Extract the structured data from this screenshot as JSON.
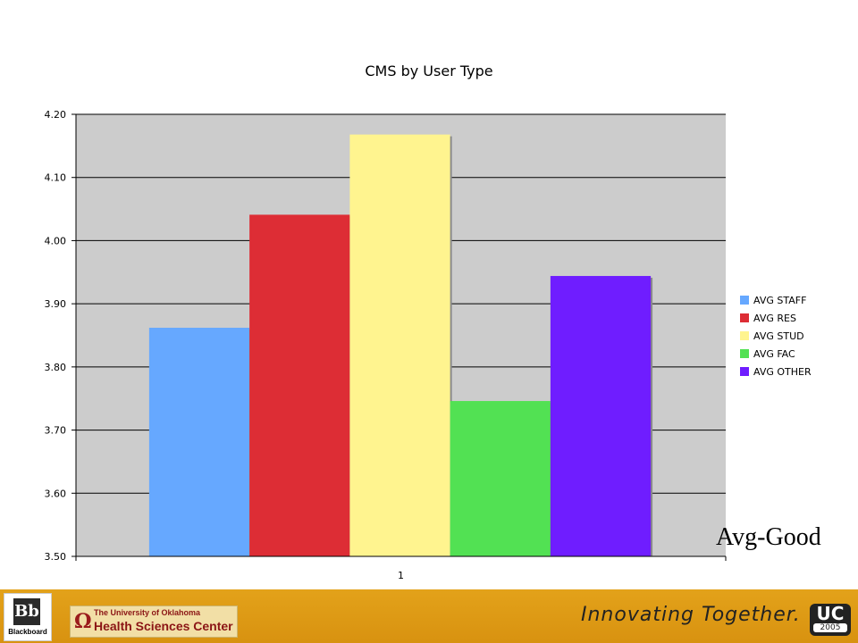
{
  "chart_data": {
    "type": "bar",
    "title": "CMS by User Type",
    "categories": [
      "1"
    ],
    "ylim": [
      3.5,
      4.2
    ],
    "yticks": [
      "3.50",
      "3.60",
      "3.70",
      "3.80",
      "3.90",
      "4.00",
      "4.10",
      "4.20"
    ],
    "grid": true,
    "legend_position": "right",
    "plot_background": "#cccccc",
    "series": [
      {
        "name": "AVG STAFF",
        "values": [
          3.862
        ],
        "color": "#66a8ff"
      },
      {
        "name": "AVG RES",
        "values": [
          4.041
        ],
        "color": "#dd2d35"
      },
      {
        "name": "AVG STUD",
        "values": [
          4.168
        ],
        "color": "#fff48f"
      },
      {
        "name": "AVG FAC",
        "values": [
          3.746
        ],
        "color": "#52e153"
      },
      {
        "name": "AVG OTHER",
        "values": [
          3.944
        ],
        "color": "#6f1dff"
      }
    ]
  },
  "annotation": "Avg-Good",
  "footer": {
    "bb_logo_mark": "Bb",
    "bb_logo_text": "Blackboard",
    "org_line1": "The University of Oklahoma",
    "org_line2": "Health Sciences Center",
    "tagline": "Innovating Together.",
    "uc_logo_main": "UC",
    "uc_logo_year": "2005",
    "background_color": "#e3a21a"
  }
}
